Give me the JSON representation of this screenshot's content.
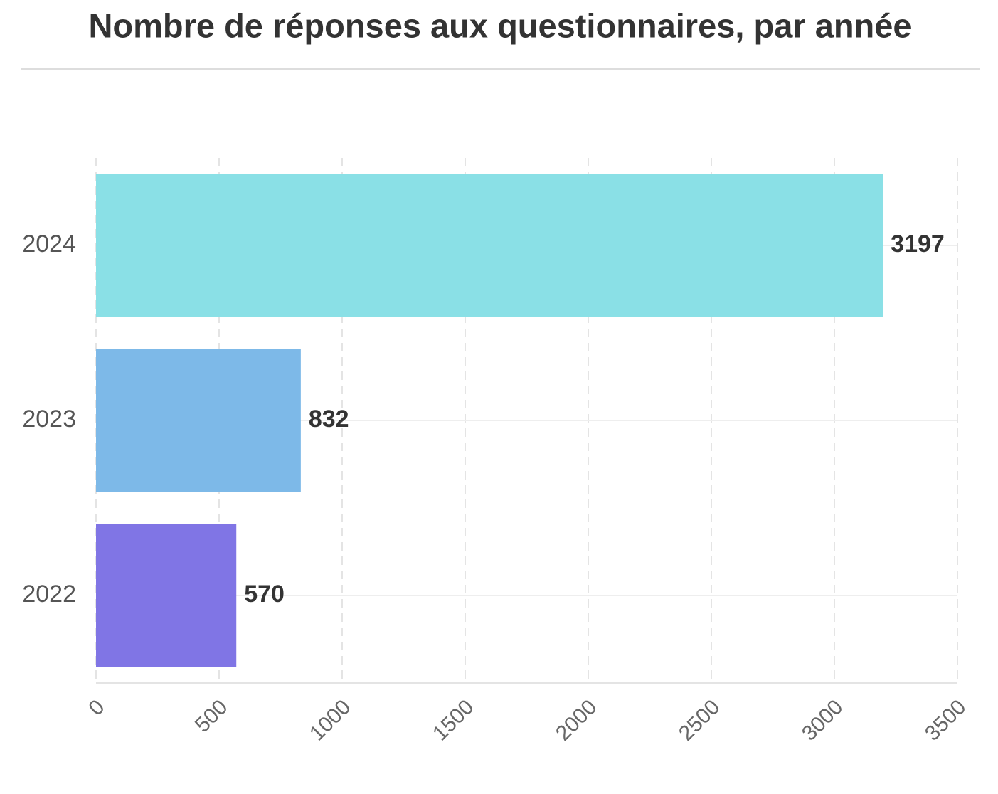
{
  "chart_data": {
    "type": "bar",
    "orientation": "horizontal",
    "title": "Nombre de réponses aux questionnaires, par année",
    "categories": [
      "2024",
      "2023",
      "2022"
    ],
    "values": [
      3197,
      832,
      570
    ],
    "colors": [
      "#8ae0e6",
      "#7db9e8",
      "#8075e5"
    ],
    "xlim": [
      0,
      3500
    ],
    "xticks": [
      0,
      500,
      1000,
      1500,
      2000,
      2500,
      3000,
      3500
    ],
    "grid": true
  }
}
